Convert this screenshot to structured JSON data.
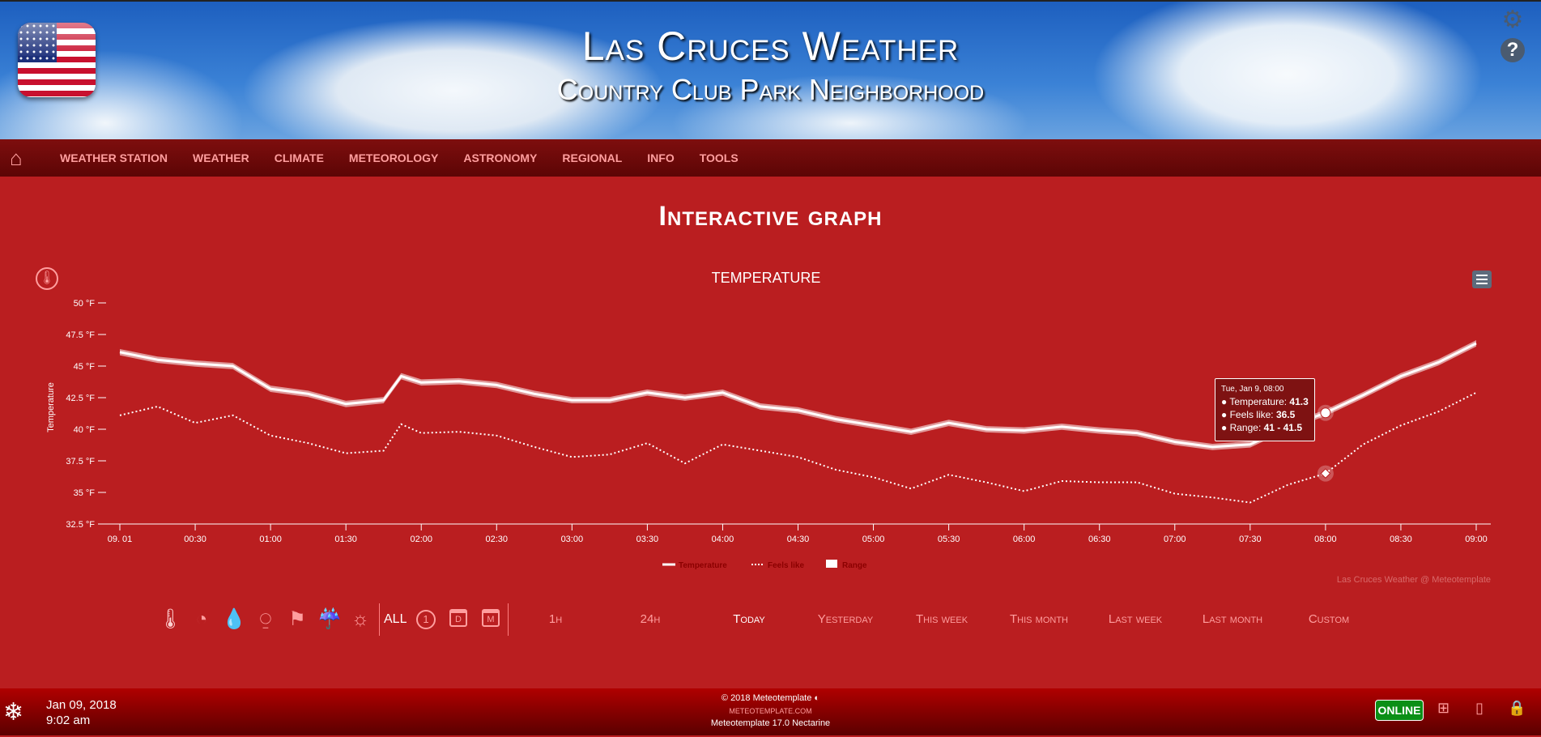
{
  "header": {
    "title": "Las Cruces Weather",
    "subtitle": "Country Club Park Neighborhood",
    "flag_icon": "us-flag-icon",
    "settings_icon": "gear-icon",
    "help_icon": "question-icon"
  },
  "nav": {
    "home_icon": "home-icon",
    "items": [
      "WEATHER STATION",
      "WEATHER",
      "CLIMATE",
      "METEOROLOGY",
      "ASTRONOMY",
      "REGIONAL",
      "INFO",
      "TOOLS"
    ]
  },
  "page_title": "Interactive graph",
  "chart_data": {
    "type": "line",
    "title": "TEMPERATURE",
    "ylabel": "Temperature",
    "yunit": "°F",
    "ylim": [
      32.5,
      50
    ],
    "yticks": [
      "32.5 °F",
      "35 °F",
      "37.5 °F",
      "40 °F",
      "42.5 °F",
      "45 °F",
      "47.5 °F",
      "50 °F"
    ],
    "xticks": [
      "09. 01",
      "00:30",
      "01:00",
      "01:30",
      "02:00",
      "02:30",
      "03:00",
      "03:30",
      "04:00",
      "04:30",
      "05:00",
      "05:30",
      "06:00",
      "06:30",
      "07:00",
      "07:30",
      "08:00",
      "08:30",
      "09:00"
    ],
    "x": [
      "00:00",
      "00:15",
      "00:30",
      "00:45",
      "01:00",
      "01:15",
      "01:30",
      "01:45",
      "01:52",
      "02:00",
      "02:15",
      "02:30",
      "02:45",
      "03:00",
      "03:15",
      "03:30",
      "03:45",
      "04:00",
      "04:15",
      "04:30",
      "04:45",
      "05:00",
      "05:15",
      "05:30",
      "05:45",
      "06:00",
      "06:15",
      "06:30",
      "06:45",
      "07:00",
      "07:15",
      "07:30",
      "07:45",
      "08:00",
      "08:15",
      "08:30",
      "08:45",
      "09:00"
    ],
    "series": [
      {
        "name": "Temperature",
        "style": "solid",
        "values": [
          46.1,
          45.5,
          45.2,
          45.0,
          43.2,
          42.8,
          42.0,
          42.3,
          44.2,
          43.7,
          43.8,
          43.5,
          42.8,
          42.3,
          42.3,
          42.9,
          42.5,
          42.9,
          41.8,
          41.5,
          40.8,
          40.3,
          39.8,
          40.5,
          40.0,
          39.9,
          40.2,
          39.9,
          39.7,
          39.0,
          38.6,
          38.8,
          40.2,
          41.3,
          42.7,
          44.2,
          45.3,
          46.8
        ]
      },
      {
        "name": "Feels like",
        "style": "dotted",
        "values": [
          41.1,
          41.8,
          40.5,
          41.1,
          39.5,
          38.9,
          38.1,
          38.3,
          40.4,
          39.7,
          39.8,
          39.5,
          38.6,
          37.8,
          38.0,
          38.9,
          37.3,
          38.8,
          38.3,
          37.8,
          36.8,
          36.2,
          35.3,
          36.4,
          35.8,
          35.1,
          35.9,
          35.8,
          35.8,
          34.9,
          34.6,
          34.2,
          35.6,
          36.5,
          38.8,
          40.3,
          41.4,
          42.9
        ]
      },
      {
        "name": "Range",
        "style": "band",
        "offset": 0.25
      }
    ],
    "legend_position": "bottom-center",
    "credits": "Las Cruces Weather @ Meteotemplate",
    "tooltip": {
      "header": "Tue, Jan 9, 08:00",
      "lines": [
        {
          "label": "Temperature: ",
          "value": "41.3"
        },
        {
          "label": "Feels like: ",
          "value": "36.5"
        },
        {
          "label": "Range: ",
          "value": "41 - 41.5"
        }
      ]
    },
    "colors": {
      "line": "#ffffff",
      "legend_text": "#8b0000",
      "background": "#ba1e20"
    }
  },
  "controls": {
    "variable_icons": [
      "thermometer-icon",
      "pressure-gauge-icon",
      "humidity-drop-icon",
      "rain-gauge-icon",
      "wind-sock-icon",
      "rain-cloud-icon",
      "sun-icon"
    ],
    "all_label": "ALL",
    "period_icons": [
      "hour-clock-icon",
      "day-calendar-icon",
      "month-calendar-icon"
    ],
    "period_icon_letters": [
      "1",
      "D",
      "M"
    ],
    "periods": [
      "1h",
      "24h",
      "Today",
      "Yesterday",
      "This week",
      "This month",
      "Last week",
      "Last month",
      "Custom"
    ],
    "active_period": "Today"
  },
  "footer": {
    "date": "Jan 09, 2018",
    "time": "9:02 am",
    "copyright": "© 2018  Meteotemplate",
    "site": "METEOTEMPLATE.COM",
    "version": "Meteotemplate 17.0 Nectarine",
    "status": "ONLINE"
  }
}
